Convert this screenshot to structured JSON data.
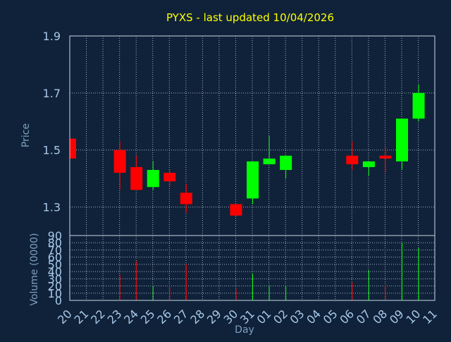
{
  "chart_data": {
    "type": "candlestick",
    "title": "PYXS - last updated 10/04/2026",
    "xlabel": "Day",
    "colors": {
      "background": "#0f2239",
      "title": "#ffff00",
      "axis_text": "#a8c8e8",
      "axis_title": "#7f9fbf",
      "frame": "#c8d8e8",
      "grid": "#a0b0c0",
      "up": "#00ff00",
      "down": "#ff0000"
    },
    "price_panel": {
      "ylabel": "Price",
      "ylim": [
        1.2,
        1.9
      ],
      "yticks": [
        "1.3",
        "1.5",
        "1.7",
        "1.9"
      ],
      "grid": true
    },
    "volume_panel": {
      "ylabel": "Volume (0000)",
      "ylim": [
        0,
        90
      ],
      "yticks": [
        "0",
        "10",
        "20",
        "30",
        "40",
        "50",
        "60",
        "70",
        "80",
        "90"
      ],
      "grid": true
    },
    "x_tick_labels": [
      "20",
      "21",
      "22",
      "23",
      "24",
      "25",
      "26",
      "27",
      "28",
      "29",
      "30",
      "31",
      "01",
      "02",
      "03",
      "04",
      "05",
      "06",
      "07",
      "08",
      "09",
      "10",
      "11"
    ],
    "candles": [
      {
        "day": "20",
        "open": 1.54,
        "close": 1.47,
        "high": 1.54,
        "low": 1.47,
        "volume": 0
      },
      {
        "day": "23",
        "open": 1.5,
        "close": 1.42,
        "high": 1.53,
        "low": 1.36,
        "volume": 36
      },
      {
        "day": "24",
        "open": 1.44,
        "close": 1.36,
        "high": 1.48,
        "low": 1.36,
        "volume": 55
      },
      {
        "day": "25",
        "open": 1.37,
        "close": 1.43,
        "high": 1.46,
        "low": 1.36,
        "volume": 20
      },
      {
        "day": "26",
        "open": 1.42,
        "close": 1.39,
        "high": 1.43,
        "low": 1.37,
        "volume": 19
      },
      {
        "day": "27",
        "open": 1.35,
        "close": 1.31,
        "high": 1.38,
        "low": 1.28,
        "volume": 50
      },
      {
        "day": "30",
        "open": 1.31,
        "close": 1.27,
        "high": 1.31,
        "low": 1.27,
        "volume": 16
      },
      {
        "day": "31",
        "open": 1.33,
        "close": 1.46,
        "high": 1.46,
        "low": 1.31,
        "volume": 37
      },
      {
        "day": "01",
        "open": 1.45,
        "close": 1.47,
        "high": 1.55,
        "low": 1.45,
        "volume": 21
      },
      {
        "day": "02",
        "open": 1.43,
        "close": 1.48,
        "high": 1.48,
        "low": 1.4,
        "volume": 20
      },
      {
        "day": "06",
        "open": 1.48,
        "close": 1.45,
        "high": 1.53,
        "low": 1.43,
        "volume": 25
      },
      {
        "day": "07",
        "open": 1.44,
        "close": 1.46,
        "high": 1.46,
        "low": 1.41,
        "volume": 42
      },
      {
        "day": "08",
        "open": 1.48,
        "close": 1.47,
        "high": 1.51,
        "low": 1.42,
        "volume": 21
      },
      {
        "day": "09",
        "open": 1.46,
        "close": 1.61,
        "high": 1.61,
        "low": 1.43,
        "volume": 80
      },
      {
        "day": "10",
        "open": 1.61,
        "close": 1.7,
        "high": 1.73,
        "low": 1.6,
        "volume": 73
      }
    ]
  }
}
